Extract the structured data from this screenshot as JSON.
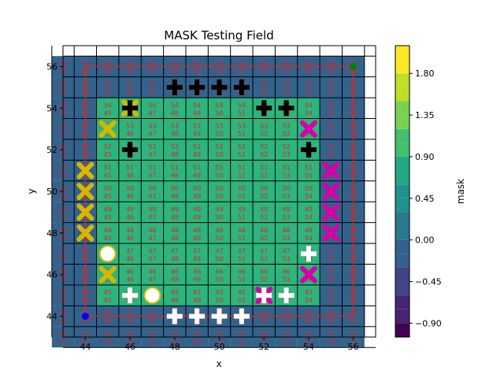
{
  "chart_data": {
    "type": "heatmap",
    "title": "MASK Testing Field",
    "xlabel": "x",
    "ylabel": "y",
    "xlim": [
      43,
      57
    ],
    "ylim": [
      43,
      57
    ],
    "x_ticks": [
      44,
      46,
      48,
      50,
      52,
      54,
      56
    ],
    "y_ticks": [
      44,
      46,
      48,
      50,
      52,
      54,
      56
    ],
    "colorbar": {
      "label": "mask",
      "range": [
        -1.05,
        2.1
      ],
      "ticks": [
        -0.9,
        -0.45,
        0.0,
        0.45,
        0.9,
        1.35,
        1.8
      ],
      "tick_labels": [
        "−0.90",
        "−0.45",
        "0.00",
        "0.45",
        "0.90",
        "1.35",
        "1.80"
      ]
    },
    "grid_x": [
      43,
      44,
      45,
      46,
      47,
      48,
      49,
      50,
      51,
      52,
      53,
      54,
      55,
      56
    ],
    "grid_y": [
      43,
      44,
      45,
      46,
      47,
      48,
      49,
      50,
      51,
      52,
      53,
      54,
      55,
      56
    ],
    "mask_values": {
      "background": 0,
      "inner_region": {
        "x_range": [
          45,
          54
        ],
        "y_range": [
          45,
          54
        ],
        "value": 1
      }
    },
    "cell_label_format": "top: y value, bottom: x value",
    "start_point": {
      "x": 44,
      "y": 44,
      "color": "#0000ff"
    },
    "end_point": {
      "x": 56,
      "y": 56,
      "color": "#008000"
    },
    "boundary_rect": {
      "x_range": [
        44,
        56
      ],
      "y_range": [
        44,
        56
      ],
      "color": "#d62728"
    },
    "markers": {
      "yellow_cross": [
        [
          44,
          51
        ],
        [
          44,
          50
        ],
        [
          44,
          49
        ],
        [
          44,
          48
        ],
        [
          45,
          53
        ],
        [
          45,
          46
        ],
        [
          46,
          54
        ]
      ],
      "white_circle": [
        [
          45,
          47
        ],
        [
          47,
          45
        ]
      ],
      "black_cross": [
        [
          46,
          54
        ],
        [
          46,
          52
        ],
        [
          48,
          55
        ],
        [
          49,
          55
        ],
        [
          50,
          55
        ],
        [
          51,
          55
        ],
        [
          52,
          54
        ],
        [
          53,
          54
        ],
        [
          54,
          52
        ]
      ],
      "magenta_cross": [
        [
          54,
          53
        ],
        [
          55,
          51
        ],
        [
          55,
          50
        ],
        [
          55,
          49
        ],
        [
          55,
          48
        ],
        [
          54,
          46
        ],
        [
          52,
          45
        ]
      ],
      "white_plus": [
        [
          46,
          45
        ],
        [
          54,
          47
        ],
        [
          48,
          44
        ],
        [
          49,
          44
        ],
        [
          50,
          44
        ],
        [
          51,
          44
        ],
        [
          52,
          45
        ],
        [
          53,
          45
        ]
      ]
    }
  }
}
